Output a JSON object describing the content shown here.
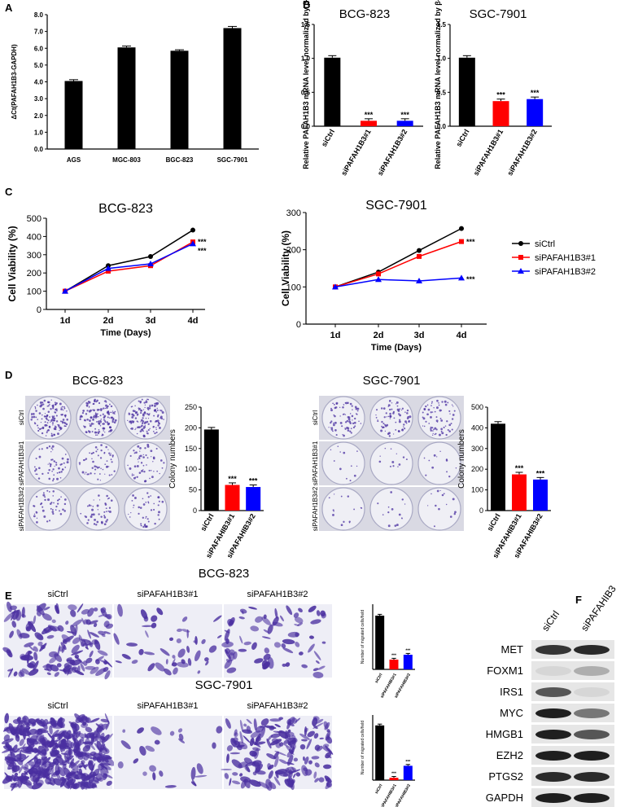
{
  "panels": {
    "A": "A",
    "B": "B",
    "C": "C",
    "D": "D",
    "E": "E",
    "F": "F"
  },
  "colors": {
    "ctrl": "#000000",
    "kd1": "#ff0000",
    "kd2": "#0000ff",
    "stain": "#4a2fa0"
  },
  "chart_data": [
    {
      "id": "A",
      "type": "bar",
      "ylabel": "ΔCt(PAFAH1B3-GAPDH)",
      "categories": [
        "AGS",
        "MGC-803",
        "BGC-823",
        "SGC-7901"
      ],
      "values": [
        4.05,
        6.05,
        5.85,
        7.2
      ],
      "errors": [
        0.08,
        0.08,
        0.06,
        0.1
      ],
      "ylim": [
        0,
        8
      ],
      "yticks": [
        "0.0",
        "1.0",
        "2.0",
        "3.0",
        "4.0",
        "5.0",
        "6.0",
        "7.0",
        "8.0"
      ]
    },
    {
      "id": "B1",
      "type": "bar",
      "title": "BCG-823",
      "ylabel": "Relative PAFAH1B3 mRNA level normalized by β-actin",
      "categories": [
        "siCtrl",
        "siPAFAH1B3#1",
        "siPAFAH1B3#2"
      ],
      "values": [
        1.01,
        0.08,
        0.08
      ],
      "ylim": [
        0,
        1.5
      ],
      "yticks": [
        "0.0",
        "0.5",
        "1.0",
        "1.5"
      ],
      "sig": [
        "",
        "***",
        "***"
      ]
    },
    {
      "id": "B2",
      "type": "bar",
      "title": "SGC-7901",
      "ylabel": "Relative PAFAH1B3 mRNA level normalized by β-actin",
      "categories": [
        "siCtrl",
        "siPAFAH1B3#1",
        "siPAFAH1B3#2"
      ],
      "values": [
        1.01,
        0.37,
        0.4
      ],
      "ylim": [
        0,
        1.5
      ],
      "yticks": [
        "0.0",
        "0.5",
        "1.0",
        "1.5"
      ],
      "sig": [
        "",
        "***",
        "***"
      ]
    },
    {
      "id": "C1",
      "type": "line",
      "title": "BCG-823",
      "xlabel": "Time (Days)",
      "ylabel": "Cell Viability (%)",
      "x": [
        "1d",
        "2d",
        "3d",
        "4d"
      ],
      "ylim": [
        0,
        500
      ],
      "yticks": [
        "0",
        "100",
        "200",
        "300",
        "400",
        "500"
      ],
      "series": [
        {
          "name": "siCtrl",
          "values": [
            100,
            240,
            290,
            435
          ]
        },
        {
          "name": "siPAFAH1B3#1",
          "values": [
            100,
            210,
            240,
            370
          ]
        },
        {
          "name": "siPAFAH1B3#2",
          "values": [
            100,
            225,
            250,
            360
          ]
        }
      ],
      "sig": [
        "***",
        "***"
      ]
    },
    {
      "id": "C2",
      "type": "line",
      "title": "SGC-7901",
      "xlabel": "Time (Days)",
      "ylabel": "Cell Viability (%)",
      "x": [
        "1d",
        "2d",
        "3d",
        "4d"
      ],
      "ylim": [
        0,
        300
      ],
      "yticks": [
        "0",
        "100",
        "200",
        "300"
      ],
      "series": [
        {
          "name": "siCtrl",
          "values": [
            100,
            140,
            198,
            257
          ]
        },
        {
          "name": "siPAFAH1B3#1",
          "values": [
            100,
            135,
            182,
            222
          ]
        },
        {
          "name": "siPAFAH1B3#2",
          "values": [
            100,
            120,
            116,
            124
          ]
        }
      ],
      "sig": [
        "***",
        "***"
      ],
      "legend": [
        "siCtrl",
        "siPAFAH1B3#1",
        "siPAFAH1B3#2"
      ]
    },
    {
      "id": "D1",
      "type": "bar",
      "title": "BCG-823",
      "ylabel": "Colony numbers",
      "categories": [
        "siCtrl",
        "siPAFAHIB3#1",
        "siPAFAHIB3#2"
      ],
      "values": [
        196,
        62,
        57
      ],
      "ylim": [
        0,
        250
      ],
      "yticks": [
        "0",
        "50",
        "100",
        "150",
        "200",
        "250"
      ],
      "sig": [
        "",
        "***",
        "***"
      ]
    },
    {
      "id": "D2",
      "type": "bar",
      "title": "SGC-7901",
      "ylabel": "Colony numbers",
      "categories": [
        "siCtrl",
        "siPAFAHIB3#1",
        "siPAFAHIB3#2"
      ],
      "values": [
        420,
        175,
        150
      ],
      "ylim": [
        0,
        500
      ],
      "yticks": [
        "0",
        "100",
        "200",
        "300",
        "400",
        "500"
      ],
      "sig": [
        "",
        "***",
        "***"
      ]
    },
    {
      "id": "E1",
      "type": "bar",
      "ylabel": "Number of migrated cells/field",
      "categories": [
        "siCtrl",
        "siPAFAHIB3#1",
        "siPAFAHIB3#2"
      ],
      "values": [
        165,
        30,
        45
      ],
      "ylim": [
        0,
        200
      ],
      "sig": [
        "",
        "***",
        "***"
      ]
    },
    {
      "id": "E2",
      "type": "bar",
      "ylabel": "Number of migrated cells/field",
      "categories": [
        "siCtrl",
        "siPAFAHIB3#1",
        "siPAFAHIB3#2"
      ],
      "values": [
        420,
        18,
        110
      ],
      "ylim": [
        0,
        500
      ],
      "sig": [
        "",
        "***",
        "***"
      ]
    }
  ],
  "panelD": {
    "titles": [
      "BCG-823",
      "SGC-7901"
    ],
    "row_labels": [
      "siCtrl",
      "siPAFAH1B3#1",
      "siPAFAH1B3#2"
    ]
  },
  "panelE": {
    "titles": [
      "BCG-823",
      "SGC-7901"
    ],
    "column_labels": [
      "siCtrl",
      "siPAFAH1B3#1",
      "siPAFAH1B3#2"
    ]
  },
  "panelF": {
    "lanes": [
      "siCtrl",
      "siPAFAHIB3"
    ],
    "proteins": [
      "MET",
      "FOXM1",
      "IRS1",
      "MYC",
      "HMGB1",
      "EZH2",
      "PTGS2",
      "GAPDH"
    ],
    "intensity": [
      [
        0.85,
        0.9
      ],
      [
        0.12,
        0.3
      ],
      [
        0.7,
        0.12
      ],
      [
        0.95,
        0.55
      ],
      [
        0.95,
        0.7
      ],
      [
        0.95,
        0.95
      ],
      [
        0.9,
        0.9
      ],
      [
        0.95,
        0.95
      ]
    ]
  }
}
